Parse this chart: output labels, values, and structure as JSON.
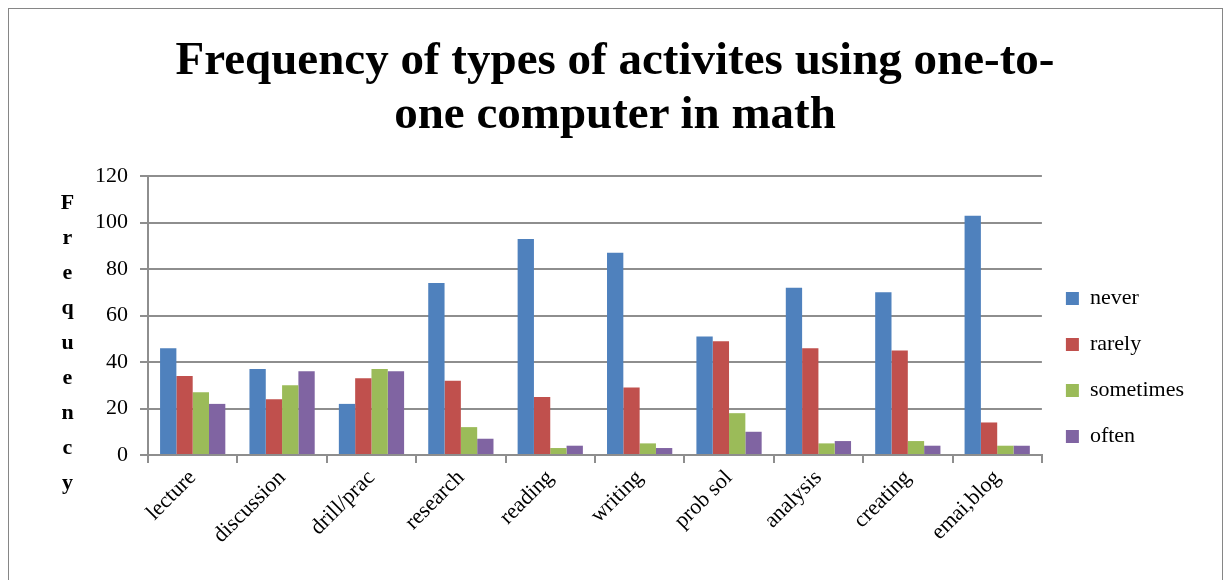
{
  "chart_data": {
    "type": "bar",
    "title": "Frequency of types of activites using one-to-one computer in math",
    "ylabel": "Frequency",
    "categories": [
      "lecture",
      "discussion",
      "drill/prac",
      "research",
      "reading",
      "writing",
      "prob sol",
      "analysis",
      "creating",
      "emai,blog"
    ],
    "series": [
      {
        "name": "never",
        "color": "#4f81bd",
        "values": [
          46,
          37,
          22,
          74,
          93,
          87,
          51,
          72,
          70,
          103
        ]
      },
      {
        "name": "rarely",
        "color": "#c0504d",
        "values": [
          34,
          24,
          33,
          32,
          25,
          29,
          49,
          46,
          45,
          14
        ]
      },
      {
        "name": "sometimes",
        "color": "#9bbb59",
        "values": [
          27,
          30,
          37,
          12,
          3,
          5,
          18,
          5,
          6,
          4
        ]
      },
      {
        "name": "often",
        "color": "#8064a2",
        "values": [
          22,
          36,
          36,
          7,
          4,
          3,
          10,
          6,
          4,
          4
        ]
      }
    ],
    "ylim": [
      0,
      120
    ],
    "yticks": [
      0,
      20,
      40,
      60,
      80,
      100,
      120
    ],
    "grid": "y",
    "legend": "right"
  }
}
